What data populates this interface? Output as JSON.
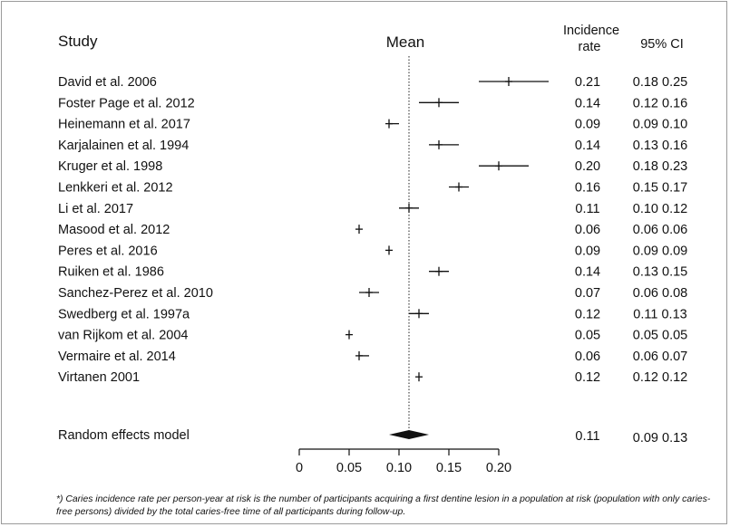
{
  "headers": {
    "study": "Study",
    "mean": "Mean",
    "incidence_line1": "Incidence",
    "incidence_line2": "rate",
    "ci": "95% CI"
  },
  "footnote": "*) Caries incidence rate per person-year at risk is the number of participants acquiring a first dentine lesion in a population at risk (population with only caries-free persons) divided by the total caries-free time of all participants during follow-up.",
  "chart_data": {
    "type": "forest",
    "xlim": [
      0,
      0.2
    ],
    "x_ticks": [
      "0",
      "0.05",
      "0.10",
      "0.15",
      "0.20"
    ],
    "reference_line": 0.11,
    "studies": [
      {
        "label": "David et al. 2006",
        "rate": 0.21,
        "lo": 0.18,
        "hi": 0.25,
        "rate_text": "0.21",
        "ci_text": "0.18 0.25"
      },
      {
        "label": "Foster Page et al. 2012",
        "rate": 0.14,
        "lo": 0.12,
        "hi": 0.16,
        "rate_text": "0.14",
        "ci_text": "0.12 0.16"
      },
      {
        "label": "Heinemann et al. 2017",
        "rate": 0.09,
        "lo": 0.09,
        "hi": 0.1,
        "rate_text": "0.09",
        "ci_text": "0.09 0.10"
      },
      {
        "label": "Karjalainen et al. 1994",
        "rate": 0.14,
        "lo": 0.13,
        "hi": 0.16,
        "rate_text": "0.14",
        "ci_text": "0.13 0.16"
      },
      {
        "label": "Kruger et al. 1998",
        "rate": 0.2,
        "lo": 0.18,
        "hi": 0.23,
        "rate_text": "0.20",
        "ci_text": "0.18 0.23"
      },
      {
        "label": "Lenkkeri et al. 2012",
        "rate": 0.16,
        "lo": 0.15,
        "hi": 0.17,
        "rate_text": "0.16",
        "ci_text": "0.15 0.17"
      },
      {
        "label": "Li et al. 2017",
        "rate": 0.11,
        "lo": 0.1,
        "hi": 0.12,
        "rate_text": "0.11",
        "ci_text": "0.10 0.12"
      },
      {
        "label": "Masood et al. 2012",
        "rate": 0.06,
        "lo": 0.06,
        "hi": 0.06,
        "rate_text": "0.06",
        "ci_text": "0.06 0.06"
      },
      {
        "label": "Peres et al. 2016",
        "rate": 0.09,
        "lo": 0.09,
        "hi": 0.09,
        "rate_text": "0.09",
        "ci_text": "0.09 0.09"
      },
      {
        "label": "Ruiken et al. 1986",
        "rate": 0.14,
        "lo": 0.13,
        "hi": 0.15,
        "rate_text": "0.14",
        "ci_text": "0.13 0.15"
      },
      {
        "label": "Sanchez-Perez et al. 2010",
        "rate": 0.07,
        "lo": 0.06,
        "hi": 0.08,
        "rate_text": "0.07",
        "ci_text": "0.06 0.08"
      },
      {
        "label": "Swedberg et al. 1997a",
        "rate": 0.12,
        "lo": 0.11,
        "hi": 0.13,
        "rate_text": "0.12",
        "ci_text": "0.11 0.13"
      },
      {
        "label": "van Rijkom et al. 2004",
        "rate": 0.05,
        "lo": 0.05,
        "hi": 0.05,
        "rate_text": "0.05",
        "ci_text": "0.05 0.05"
      },
      {
        "label": "Vermaire et al. 2014",
        "rate": 0.06,
        "lo": 0.06,
        "hi": 0.07,
        "rate_text": "0.06",
        "ci_text": "0.06 0.07"
      },
      {
        "label": "Virtanen 2001",
        "rate": 0.12,
        "lo": 0.12,
        "hi": 0.12,
        "rate_text": "0.12",
        "ci_text": "0.12 0.12"
      }
    ],
    "summary": {
      "label": "Random effects model",
      "rate": 0.11,
      "lo": 0.09,
      "hi": 0.13,
      "rate_text": "0.11",
      "ci_text": "0.09 0.13"
    }
  }
}
